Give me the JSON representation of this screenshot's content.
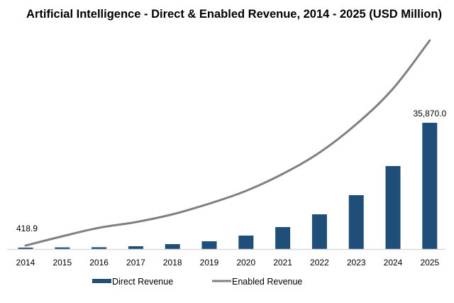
{
  "chart_data": {
    "type": "bar",
    "title": "Artificial Intelligence - Direct & Enabled Revenue, 2014 - 2025 (USD Million)",
    "xlabel": "",
    "ylabel": "",
    "categories": [
      "2014",
      "2015",
      "2016",
      "2017",
      "2018",
      "2019",
      "2020",
      "2021",
      "2022",
      "2023",
      "2024",
      "2025"
    ],
    "series": [
      {
        "name": "Direct Revenue",
        "type": "bar",
        "color": "#1f4e79",
        "values": [
          418.9,
          480,
          520,
          810,
          1410,
          2220,
          3830,
          6250,
          9870,
          15310,
          23580,
          35870.0
        ]
      },
      {
        "name": "Enabled Revenue",
        "type": "line",
        "color": "#808080",
        "values": [
          1000,
          3630,
          6050,
          7660,
          9870,
          12900,
          16520,
          21360,
          27400,
          35460,
          45540,
          59240
        ]
      }
    ],
    "data_labels": [
      {
        "category": "2014",
        "text": "418.9"
      },
      {
        "category": "2025",
        "text": "35,870.0"
      }
    ],
    "ylim": [
      0,
      60000
    ],
    "y_axis_visible": false,
    "grid": false,
    "legend": {
      "position": "bottom",
      "entries": [
        "Direct Revenue",
        "Enabled Revenue"
      ]
    }
  }
}
